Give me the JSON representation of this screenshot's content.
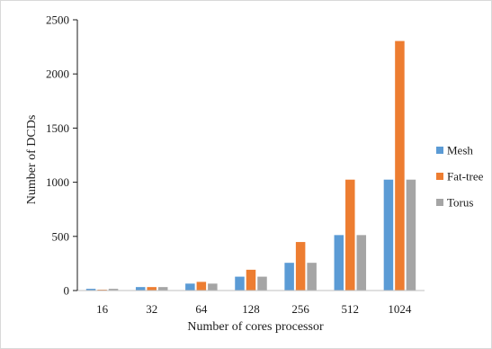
{
  "chart_data": {
    "type": "bar",
    "title": "",
    "xlabel": "Number of cores processor",
    "ylabel": "Number of DCDs",
    "categories": [
      "16",
      "32",
      "64",
      "128",
      "256",
      "512",
      "1024"
    ],
    "series": [
      {
        "name": "Mesh",
        "color": "#5b9bd5",
        "values": [
          16,
          32,
          64,
          128,
          256,
          512,
          1024
        ]
      },
      {
        "name": "Fat-tree",
        "color": "#ed7d31",
        "values": [
          8,
          32,
          80,
          192,
          448,
          1024,
          2304
        ]
      },
      {
        "name": "Torus",
        "color": "#a5a5a5",
        "values": [
          16,
          32,
          64,
          128,
          256,
          512,
          1024
        ]
      }
    ],
    "ylim": [
      0,
      2500
    ],
    "yticks": [
      0,
      500,
      1000,
      1500,
      2000,
      2500
    ],
    "legend_position": "right",
    "grid": false
  }
}
